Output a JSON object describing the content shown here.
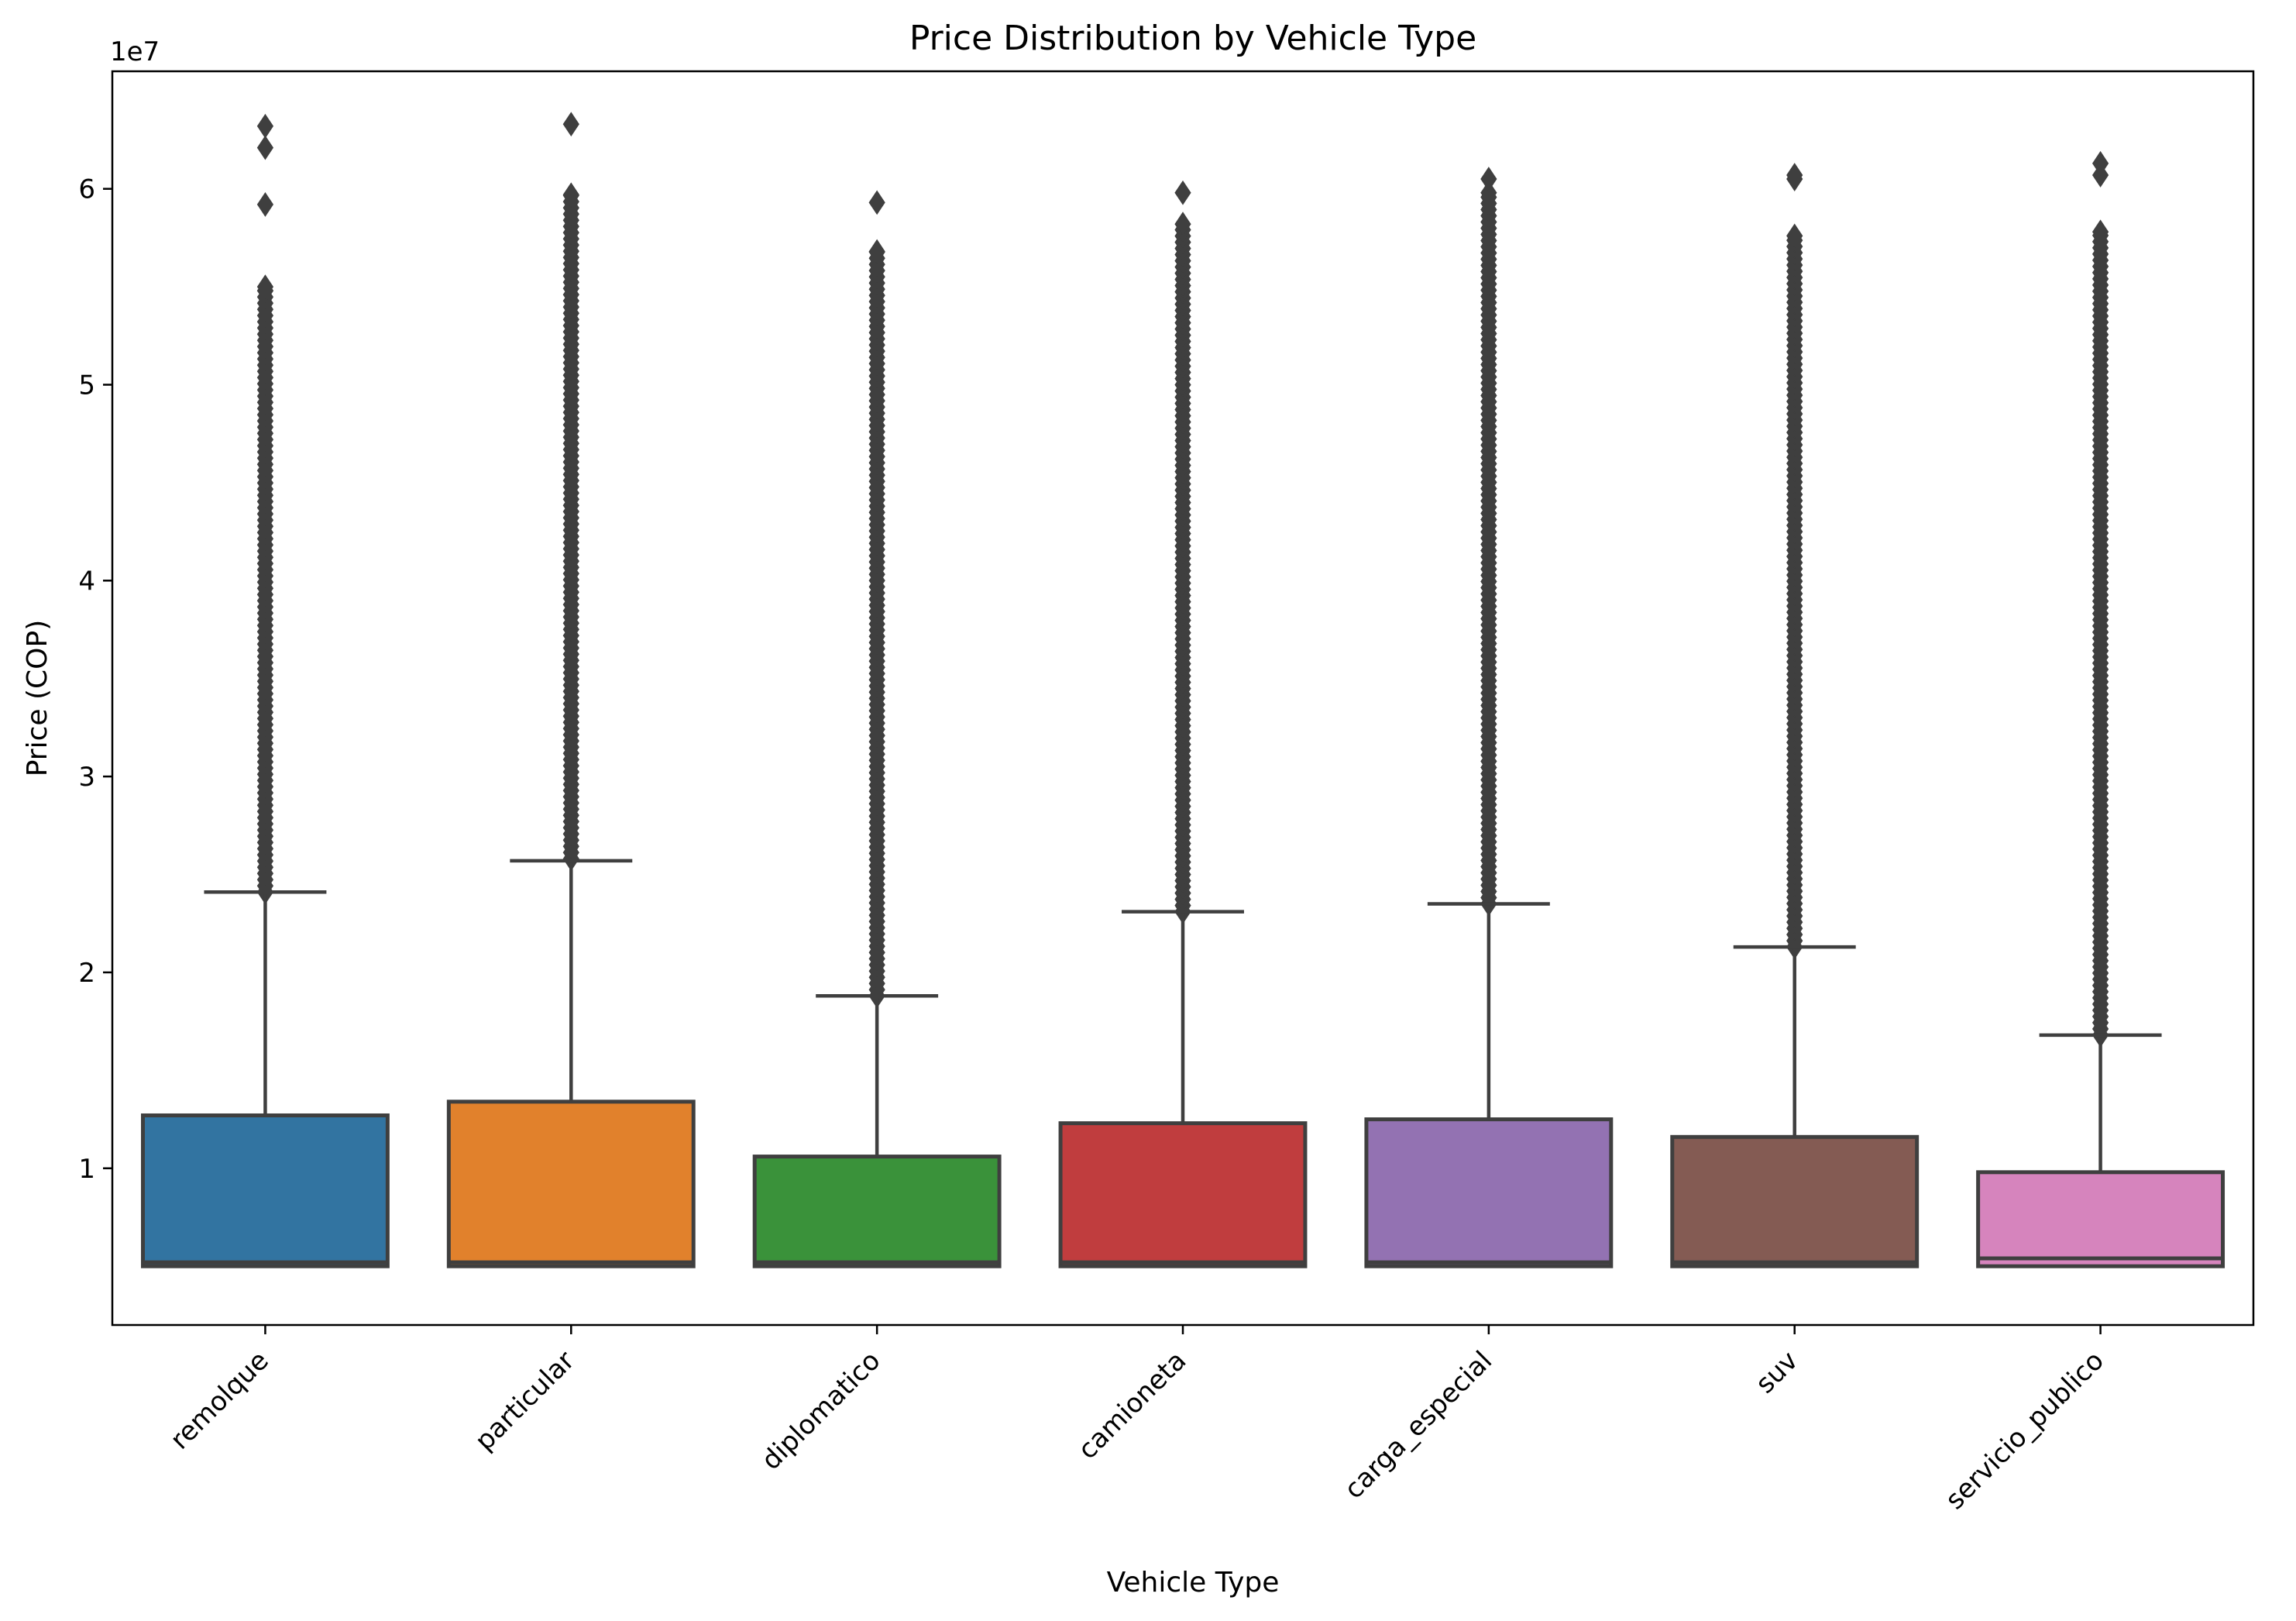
{
  "chart_data": {
    "type": "boxplot",
    "title": "Price Distribution by Vehicle Type",
    "xlabel": "Vehicle Type",
    "ylabel": "Price (COP)",
    "y_offset_text": "1e7",
    "y_tick_labels": [
      "1",
      "2",
      "3",
      "4",
      "5",
      "6"
    ],
    "y_tick_values": [
      10000000,
      20000000,
      30000000,
      40000000,
      50000000,
      60000000
    ],
    "ylim": [
      2000000,
      66000000
    ],
    "categories": [
      "remolque",
      "particular",
      "diplomatico",
      "camioneta",
      "carga_especial",
      "suv",
      "servicio_publico"
    ],
    "colors": [
      "#3274a1",
      "#e1812c",
      "#3a923a",
      "#c03d3e",
      "#9372b2",
      "#845b53",
      "#d684bd"
    ],
    "edge_color": "#3f3f3f",
    "series": [
      {
        "name": "remolque",
        "q1": 5000000,
        "median": 5200000,
        "q3": 12700000,
        "whisker_low": 5000000,
        "whisker_high": 24100000,
        "outlier_min": 24100000,
        "outlier_dense_max": 54800000,
        "outliers_top": [
          55000000,
          59200000,
          62100000,
          63200000
        ]
      },
      {
        "name": "particular",
        "q1": 5000000,
        "median": 5200000,
        "q3": 13400000,
        "whisker_low": 5000000,
        "whisker_high": 25700000,
        "outlier_min": 25800000,
        "outlier_dense_max": 59700000,
        "outliers_top": [
          63300000
        ]
      },
      {
        "name": "diplomatico",
        "q1": 5000000,
        "median": 5200000,
        "q3": 10600000,
        "whisker_low": 5000000,
        "whisker_high": 18800000,
        "outlier_min": 18800000,
        "outlier_dense_max": 56800000,
        "outliers_top": [
          59300000
        ]
      },
      {
        "name": "camioneta",
        "q1": 5000000,
        "median": 5200000,
        "q3": 12300000,
        "whisker_low": 5000000,
        "whisker_high": 23100000,
        "outlier_min": 23100000,
        "outlier_dense_max": 58200000,
        "outliers_top": [
          59800000
        ]
      },
      {
        "name": "carga_especial",
        "q1": 5000000,
        "median": 5200000,
        "q3": 12500000,
        "whisker_low": 5000000,
        "whisker_high": 23500000,
        "outlier_min": 23500000,
        "outlier_dense_max": 59800000,
        "outliers_top": [
          60500000
        ]
      },
      {
        "name": "suv",
        "q1": 5000000,
        "median": 5200000,
        "q3": 11600000,
        "whisker_low": 5000000,
        "whisker_high": 21300000,
        "outlier_min": 21300000,
        "outlier_dense_max": 57600000,
        "outliers_top": [
          60500000,
          60700000
        ]
      },
      {
        "name": "servicio_publico",
        "q1": 5000000,
        "median": 5400000,
        "q3": 9800000,
        "whisker_low": 5000000,
        "whisker_high": 16800000,
        "outlier_min": 16800000,
        "outlier_dense_max": 57800000,
        "outliers_top": [
          60700000,
          61300000
        ]
      }
    ]
  }
}
